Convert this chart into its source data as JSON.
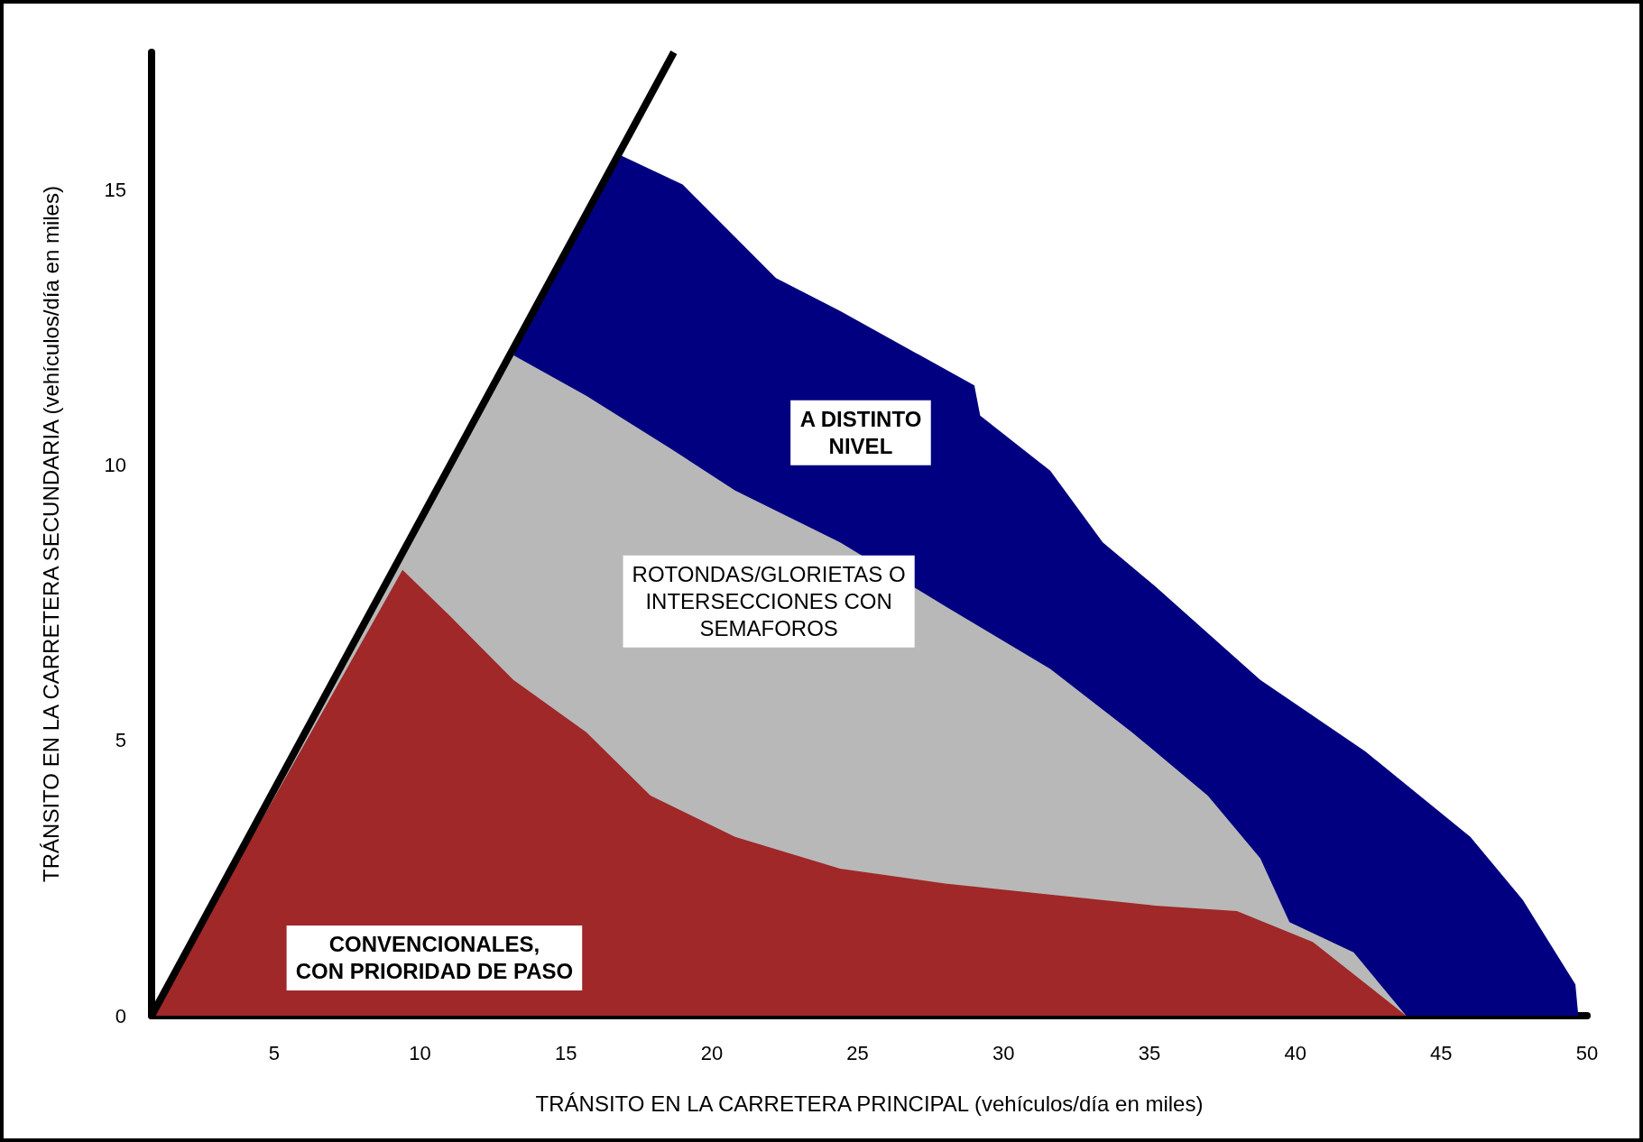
{
  "chart_data": {
    "type": "area",
    "xlabel": "TRÁNSITO EN LA CARRETERA PRINCIPAL (vehículos/día en miles)",
    "ylabel": "TRÁNSITO EN LA CARRETERA SECUNDARIA (vehículos/día en miles)",
    "xlim": [
      0.8,
      50
    ],
    "xticks": [
      5,
      10,
      15,
      20,
      25,
      30,
      35,
      40,
      45,
      50
    ],
    "ylim": [
      0,
      17.5
    ],
    "yticks": [
      0,
      5,
      10,
      15
    ],
    "grid": false,
    "series": [
      {
        "color": "#000080",
        "x": [
          0.8,
          16.8,
          19,
          22.2,
          24.4,
          29,
          29.2,
          31.6,
          33.4,
          35.2,
          38.8,
          42.4,
          46,
          47.8,
          49.6,
          49.7
        ],
        "values": [
          0,
          15.65,
          15.1,
          13.4,
          12.8,
          11.45,
          10.9,
          9.9,
          8.6,
          7.8,
          6.1,
          4.8,
          3.25,
          2.1,
          0.57,
          0
        ]
      },
      {
        "color": "#b8b8b8",
        "x": [
          0.8,
          13.2,
          15.7,
          18.6,
          20.8,
          24.4,
          28,
          31.6,
          34.4,
          37,
          38.8,
          39.8,
          42,
          43.8
        ],
        "values": [
          0,
          12,
          11.26,
          10.3,
          9.54,
          8.6,
          7.44,
          6.3,
          5.15,
          4,
          2.86,
          1.7,
          1.15,
          0
        ]
      },
      {
        "color": "#a02828",
        "x": [
          0.8,
          9.4,
          11.05,
          13.2,
          15.7,
          17.9,
          20.8,
          24.4,
          28,
          31.6,
          35.2,
          38,
          40.6,
          43.8
        ],
        "values": [
          0,
          8.1,
          7.25,
          6.1,
          5.15,
          4,
          3.25,
          2.67,
          2.4,
          2.2,
          2,
          1.9,
          1.34,
          0
        ]
      },
      {
        "type": "line",
        "color": "#000000",
        "x": [
          0.8,
          18.7
        ],
        "values": [
          0,
          17.5
        ]
      }
    ],
    "annotations": [
      "A DISTINTO\nNIVEL",
      "ROTONDAS/GLORIETAS O\nINTERSECCIONES CON\nSEMAFOROS",
      "CONVENCIONALES,\nCON PRIORIDAD DE PASO"
    ]
  }
}
